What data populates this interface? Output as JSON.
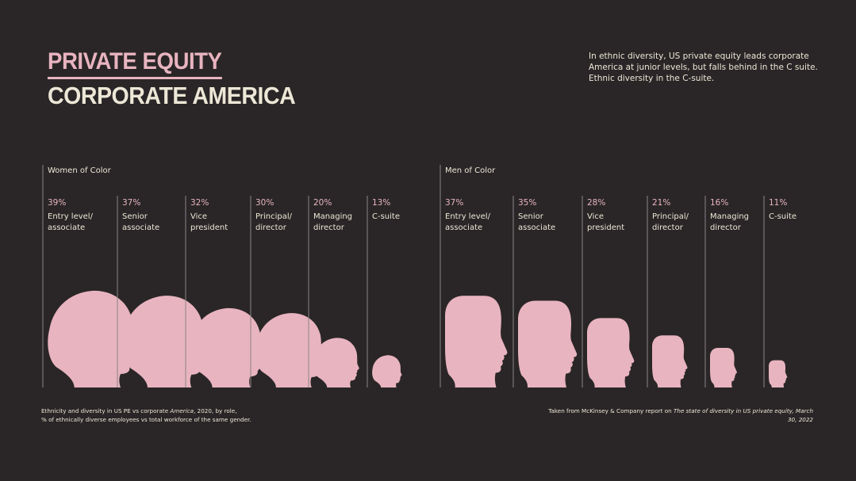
{
  "title": {
    "line1": "PRIVATE EQUITY",
    "line2": "CORPORATE AMERICA"
  },
  "intro": "In ethnic diversity, US private equity leads corporate America at junior levels, but falls behind in the C suite. Ethnic diversity in the C-suite.",
  "colors": {
    "background": "#2a2627",
    "accent_pink": "#e8b4c0",
    "text_cream": "#ece7d6",
    "divider": "#8a8485"
  },
  "chart_data": {
    "type": "pictogram",
    "groups": [
      {
        "name": "Women of Color",
        "icon": "female-head-silhouette-icon",
        "items": [
          {
            "pct_label": "39%",
            "value": 39,
            "line1": "Entry level/",
            "line2": "associate"
          },
          {
            "pct_label": "37%",
            "value": 37,
            "line1": "Senior",
            "line2": "associate"
          },
          {
            "pct_label": "32%",
            "value": 32,
            "line1": "Vice",
            "line2": "president"
          },
          {
            "pct_label": "30%",
            "value": 30,
            "line1": "Principal/",
            "line2": "director"
          },
          {
            "pct_label": "20%",
            "value": 20,
            "line1": "Managing",
            "line2": "director"
          },
          {
            "pct_label": "13%",
            "value": 13,
            "line1": "C-suite",
            "line2": ""
          }
        ]
      },
      {
        "name": "Men of Color",
        "icon": "male-head-silhouette-icon",
        "items": [
          {
            "pct_label": "37%",
            "value": 37,
            "line1": "Entry level/",
            "line2": "associate"
          },
          {
            "pct_label": "35%",
            "value": 35,
            "line1": "Senior",
            "line2": "associate"
          },
          {
            "pct_label": "28%",
            "value": 28,
            "line1": "Vice",
            "line2": "president"
          },
          {
            "pct_label": "21%",
            "value": 21,
            "line1": "Principal/",
            "line2": "director"
          },
          {
            "pct_label": "16%",
            "value": 16,
            "line1": "Managing",
            "line2": "director"
          },
          {
            "pct_label": "11%",
            "value": 11,
            "line1": "C-suite",
            "line2": ""
          }
        ]
      }
    ]
  },
  "footnote": {
    "left_pre": "Ethnicity and diversity in US PE vs corporate ",
    "left_italic": "America",
    "left_post": ", 2020, by role,",
    "left_line2": "% of ethnically diverse employees vs total workforce of the same gender.",
    "right_pre": "Taken from McKinsey & Company report on ",
    "right_italic": "The state of diversity in US private equity",
    "right_date": ", March 30, 2022"
  }
}
